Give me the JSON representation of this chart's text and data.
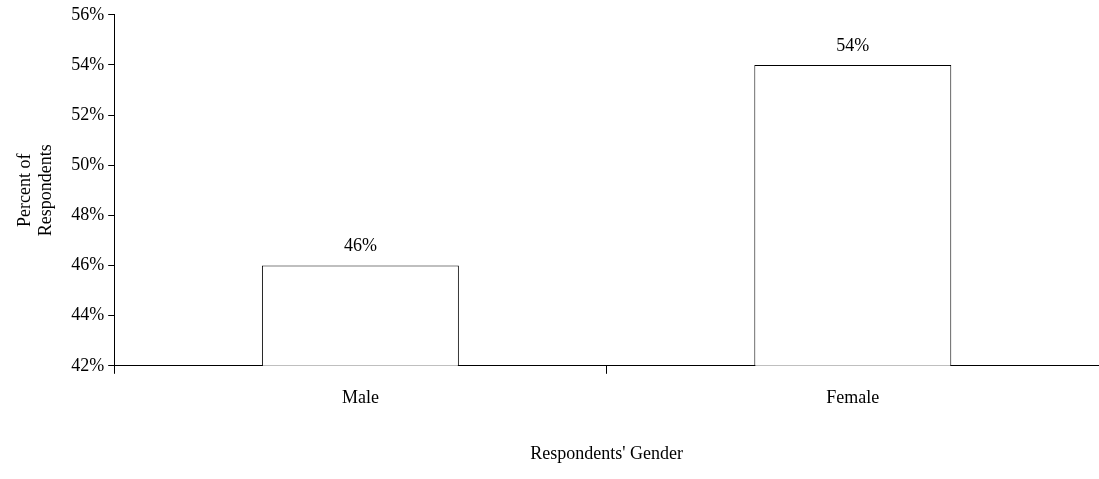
{
  "chart_data": {
    "type": "bar",
    "xlabel": "Respondents' Gender",
    "ylabel": "Percent of Respondents",
    "categories": [
      "Male",
      "Female"
    ],
    "values": [
      46,
      54
    ],
    "color": "#ffffff",
    "value_labels": [
      "46%",
      "54%"
    ],
    "ylim": [
      42,
      56
    ],
    "yticks": [
      {
        "value": 42,
        "label": "42%"
      },
      {
        "value": 44,
        "label": "44%"
      },
      {
        "value": 46,
        "label": "46%"
      },
      {
        "value": 48,
        "label": "48%"
      },
      {
        "value": 50,
        "label": "50%"
      },
      {
        "value": 52,
        "label": "52%"
      },
      {
        "value": 54,
        "label": "54%"
      },
      {
        "value": 56,
        "label": "56%"
      }
    ],
    "grid": false,
    "legend": false
  }
}
